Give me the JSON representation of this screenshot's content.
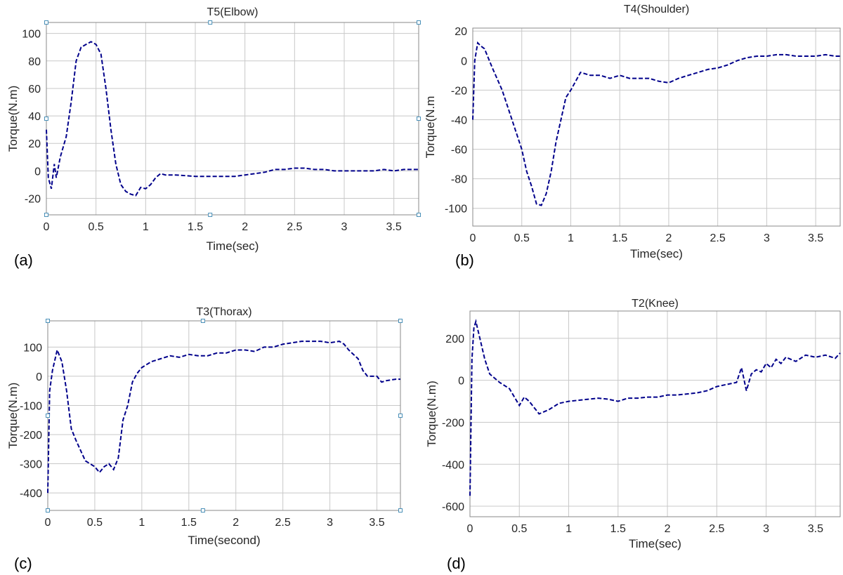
{
  "figure": {
    "panel_labels": [
      "(a)",
      "(b)",
      "(c)",
      "(d)"
    ]
  },
  "chart_data": [
    {
      "type": "line",
      "title": "T5(Elbow)",
      "xlabel": "Time(sec)",
      "ylabel": "Torque(N.m)",
      "xlim": [
        0,
        3.75
      ],
      "ylim": [
        -32,
        108
      ],
      "xticks": [
        0,
        0.5,
        1,
        1.5,
        2,
        2.5,
        3,
        3.5
      ],
      "xtick_labels": [
        "0",
        "0.5",
        "1",
        "1.5",
        "2",
        "2.5",
        "3",
        "3.5"
      ],
      "yticks": [
        -20,
        0,
        20,
        40,
        60,
        80,
        100
      ],
      "ytick_labels": [
        "-20",
        "0",
        "20",
        "40",
        "60",
        "80",
        "100"
      ],
      "grid": true,
      "line_color": "#00008b",
      "line_style": "dashed",
      "series": [
        {
          "x": [
            0,
            0.02,
            0.05,
            0.08,
            0.1,
            0.14,
            0.2,
            0.25,
            0.3,
            0.35,
            0.4,
            0.45,
            0.5,
            0.55,
            0.6,
            0.65,
            0.7,
            0.75,
            0.8,
            0.85,
            0.9,
            0.95,
            1.0,
            1.05,
            1.1,
            1.15,
            1.2,
            1.3,
            1.5,
            1.7,
            1.9,
            2.0,
            2.1,
            2.2,
            2.3,
            2.4,
            2.5,
            2.55,
            2.6,
            2.7,
            2.8,
            2.9,
            3.0,
            3.1,
            3.2,
            3.3,
            3.4,
            3.5,
            3.6,
            3.7,
            3.75
          ],
          "y": [
            30,
            -5,
            -13,
            5,
            -5,
            10,
            25,
            50,
            80,
            90,
            92,
            94,
            92,
            85,
            60,
            30,
            5,
            -10,
            -15,
            -17,
            -18,
            -12,
            -13,
            -10,
            -5,
            -2,
            -3,
            -3,
            -4,
            -4,
            -4,
            -3,
            -2,
            -1,
            1,
            1,
            2,
            2,
            2,
            1,
            1,
            0,
            0,
            0,
            0,
            0,
            1,
            0,
            1,
            1,
            1
          ]
        }
      ]
    },
    {
      "type": "line",
      "title": "T4(Shoulder)",
      "xlabel": "Time(sec)",
      "ylabel": "Torque(N.m",
      "xlim": [
        0,
        3.75
      ],
      "ylim": [
        -112,
        22
      ],
      "xticks": [
        0,
        0.5,
        1,
        1.5,
        2,
        2.5,
        3,
        3.5
      ],
      "xtick_labels": [
        "0",
        "0.5",
        "1",
        "1.5",
        "2",
        "2.5",
        "3",
        "3.5"
      ],
      "yticks": [
        -100,
        -80,
        -60,
        -40,
        -20,
        0,
        20
      ],
      "ytick_labels": [
        "-100",
        "-80",
        "-60",
        "-40",
        "-20",
        "0",
        "20"
      ],
      "grid": true,
      "line_color": "#00008b",
      "line_style": "dashed",
      "series": [
        {
          "x": [
            0,
            0.02,
            0.05,
            0.08,
            0.12,
            0.2,
            0.3,
            0.4,
            0.5,
            0.55,
            0.6,
            0.65,
            0.7,
            0.75,
            0.8,
            0.85,
            0.9,
            0.95,
            1.0,
            1.1,
            1.2,
            1.3,
            1.4,
            1.5,
            1.6,
            1.7,
            1.8,
            1.9,
            2.0,
            2.1,
            2.2,
            2.3,
            2.4,
            2.5,
            2.6,
            2.7,
            2.8,
            2.9,
            3.0,
            3.1,
            3.2,
            3.3,
            3.4,
            3.5,
            3.6,
            3.7,
            3.75
          ],
          "y": [
            -40,
            0,
            12,
            10,
            8,
            -5,
            -20,
            -40,
            -60,
            -75,
            -85,
            -97,
            -98,
            -90,
            -75,
            -55,
            -40,
            -25,
            -20,
            -8,
            -10,
            -10,
            -12,
            -10,
            -12,
            -12,
            -12,
            -14,
            -15,
            -12,
            -10,
            -8,
            -6,
            -5,
            -3,
            0,
            2,
            3,
            3,
            4,
            4,
            3,
            3,
            3,
            4,
            3,
            3
          ]
        }
      ]
    },
    {
      "type": "line",
      "title": "T3(Thorax)",
      "xlabel": "Time(second)",
      "ylabel": "Torque(N.m)",
      "xlim": [
        0,
        3.75
      ],
      "ylim": [
        -460,
        190
      ],
      "xticks": [
        0,
        0.5,
        1,
        1.5,
        2,
        2.5,
        3,
        3.5
      ],
      "xtick_labels": [
        "0",
        "0.5",
        "1",
        "1.5",
        "2",
        "2.5",
        "3",
        "3.5"
      ],
      "yticks": [
        -400,
        -300,
        -200,
        -100,
        0,
        100
      ],
      "ytick_labels": [
        "-400",
        "-300",
        "-200",
        "-100",
        "0",
        "100"
      ],
      "grid": true,
      "line_color": "#00008b",
      "line_style": "dashed",
      "series": [
        {
          "x": [
            0,
            0.02,
            0.05,
            0.1,
            0.15,
            0.2,
            0.25,
            0.3,
            0.4,
            0.5,
            0.55,
            0.6,
            0.65,
            0.7,
            0.75,
            0.8,
            0.85,
            0.9,
            0.95,
            1.0,
            1.05,
            1.1,
            1.2,
            1.3,
            1.4,
            1.5,
            1.6,
            1.7,
            1.8,
            1.9,
            2.0,
            2.1,
            2.2,
            2.3,
            2.4,
            2.5,
            2.6,
            2.7,
            2.8,
            2.9,
            3.0,
            3.1,
            3.15,
            3.2,
            3.3,
            3.35,
            3.4,
            3.5,
            3.55,
            3.6,
            3.7,
            3.75
          ],
          "y": [
            -400,
            -50,
            20,
            90,
            50,
            -50,
            -180,
            -220,
            -290,
            -310,
            -330,
            -310,
            -300,
            -320,
            -280,
            -150,
            -100,
            -20,
            10,
            30,
            40,
            50,
            60,
            70,
            65,
            75,
            70,
            70,
            80,
            80,
            90,
            90,
            85,
            100,
            100,
            110,
            115,
            120,
            120,
            120,
            115,
            120,
            110,
            90,
            60,
            20,
            0,
            0,
            -20,
            -15,
            -10,
            -10
          ]
        }
      ]
    },
    {
      "type": "line",
      "title": "T2(Knee)",
      "xlabel": "Time(sec)",
      "ylabel": "Torque(N.m)",
      "xlim": [
        0,
        3.75
      ],
      "ylim": [
        -650,
        330
      ],
      "xticks": [
        0,
        0.5,
        1,
        1.5,
        2,
        2.5,
        3,
        3.5
      ],
      "xtick_labels": [
        "0",
        "0.5",
        "1",
        "1.5",
        "2",
        "2.5",
        "3",
        "3.5"
      ],
      "yticks": [
        -600,
        -400,
        -200,
        0,
        200
      ],
      "ytick_labels": [
        "-600",
        "-400",
        "-200",
        "0",
        "200"
      ],
      "grid": true,
      "line_color": "#00008b",
      "line_style": "dashed",
      "series": [
        {
          "x": [
            0,
            0.02,
            0.04,
            0.06,
            0.1,
            0.15,
            0.2,
            0.3,
            0.4,
            0.5,
            0.55,
            0.6,
            0.7,
            0.8,
            0.9,
            1.0,
            1.1,
            1.2,
            1.3,
            1.4,
            1.5,
            1.6,
            1.7,
            1.8,
            1.9,
            2.0,
            2.1,
            2.2,
            2.3,
            2.4,
            2.5,
            2.6,
            2.7,
            2.75,
            2.8,
            2.85,
            2.9,
            2.95,
            3.0,
            3.05,
            3.1,
            3.15,
            3.2,
            3.3,
            3.4,
            3.5,
            3.6,
            3.7,
            3.75
          ],
          "y": [
            -550,
            100,
            250,
            280,
            200,
            100,
            30,
            -10,
            -40,
            -120,
            -80,
            -100,
            -160,
            -140,
            -110,
            -100,
            -95,
            -90,
            -85,
            -90,
            -100,
            -85,
            -85,
            -80,
            -80,
            -70,
            -70,
            -65,
            -60,
            -50,
            -30,
            -20,
            -10,
            60,
            -50,
            30,
            50,
            40,
            80,
            60,
            100,
            80,
            110,
            90,
            120,
            110,
            120,
            105,
            130
          ]
        }
      ]
    }
  ]
}
